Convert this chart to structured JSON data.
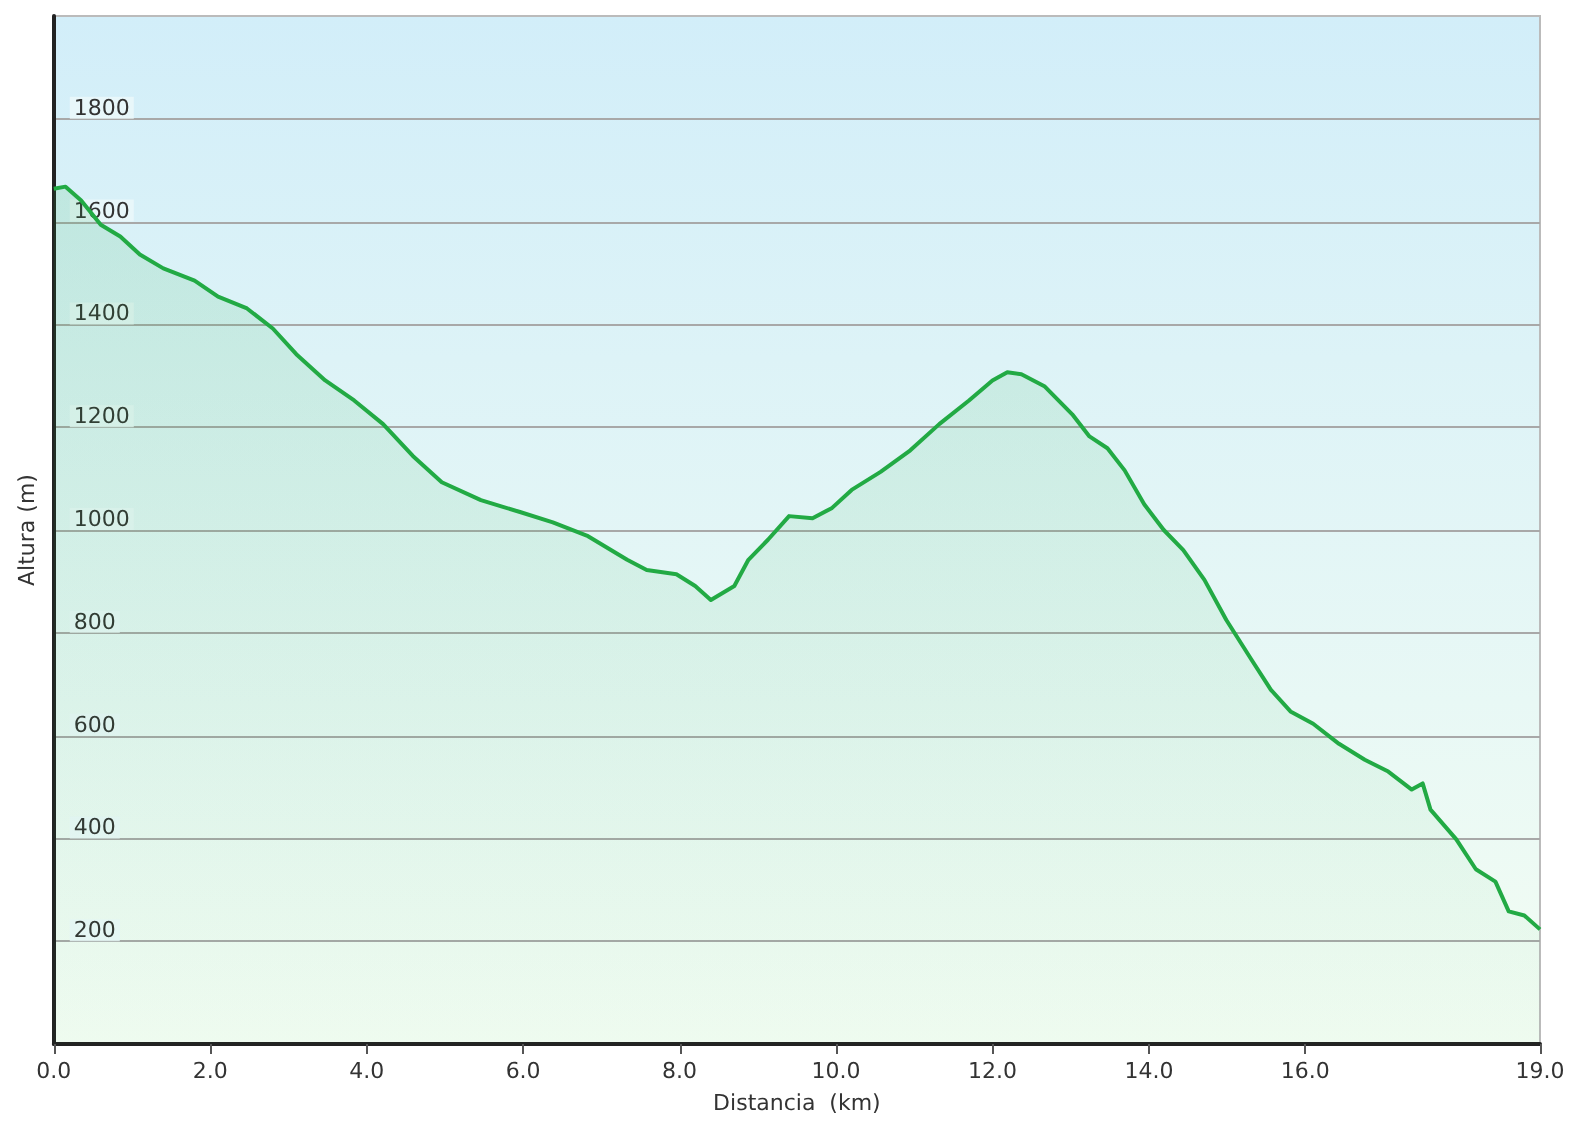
{
  "chart_data": {
    "type": "area",
    "xlabel": "Distancia  (km)",
    "ylabel": "Altura (m)",
    "xlim": [
      0,
      19.0
    ],
    "xticks": [
      {
        "value": 0,
        "label": "0.0"
      },
      {
        "value": 2,
        "label": "2.0"
      },
      {
        "value": 4,
        "label": "4.0"
      },
      {
        "value": 6,
        "label": "6.0"
      },
      {
        "value": 8,
        "label": "8.0"
      },
      {
        "value": 10,
        "label": "10.0"
      },
      {
        "value": 12,
        "label": "12.0"
      },
      {
        "value": 14,
        "label": "14.0"
      },
      {
        "value": 16,
        "label": "16.0"
      },
      {
        "value": 19,
        "label": "19.0"
      }
    ],
    "ylim": [
      0,
      2000
    ],
    "yticks": [
      200,
      400,
      600,
      800,
      1000,
      1200,
      1400,
      1600,
      1800
    ],
    "grid": "y",
    "marker": "none",
    "line_style": "solid",
    "x": [
      0,
      0.15,
      0.35,
      0.6,
      0.85,
      1.1,
      1.4,
      1.8,
      2.1,
      2.47,
      2.8,
      3.1,
      3.47,
      3.84,
      4.21,
      4.59,
      4.96,
      5.46,
      5.96,
      6.38,
      6.83,
      7.33,
      7.58,
      7.96,
      8.2,
      8.4,
      8.7,
      8.88,
      9.13,
      9.4,
      9.7,
      9.95,
      10.2,
      10.57,
      10.95,
      11.32,
      11.7,
      12.0,
      12.19,
      12.37,
      12.67,
      13.02,
      13.24,
      13.47,
      13.69,
      13.94,
      14.19,
      14.44,
      14.71,
      14.99,
      15.31,
      15.56,
      15.81,
      16.1,
      16.43,
      16.76,
      17.06,
      17.36,
      17.5,
      17.6,
      17.93,
      18.18,
      18.43,
      18.6,
      18.8,
      19.0
    ],
    "series": [
      {
        "color": "#22aa44",
        "values": [
          1664,
          1668,
          1641,
          1594,
          1571,
          1536,
          1509,
          1485,
          1454,
          1431,
          1392,
          1342,
          1291,
          1252,
          1206,
          1144,
          1093,
          1058,
          1035,
          1015,
          988,
          942,
          922,
          914,
          891,
          864,
          891,
          942,
          981,
          1027,
          1023,
          1043,
          1078,
          1113,
          1155,
          1206,
          1252,
          1291,
          1307,
          1303,
          1279,
          1225,
          1182,
          1159,
          1116,
          1050,
          1000,
          961,
          903,
          825,
          748,
          689,
          647,
          623,
          584,
          553,
          530,
          495,
          507,
          456,
          398,
          340,
          316,
          258,
          250,
          223
        ]
      }
    ]
  }
}
